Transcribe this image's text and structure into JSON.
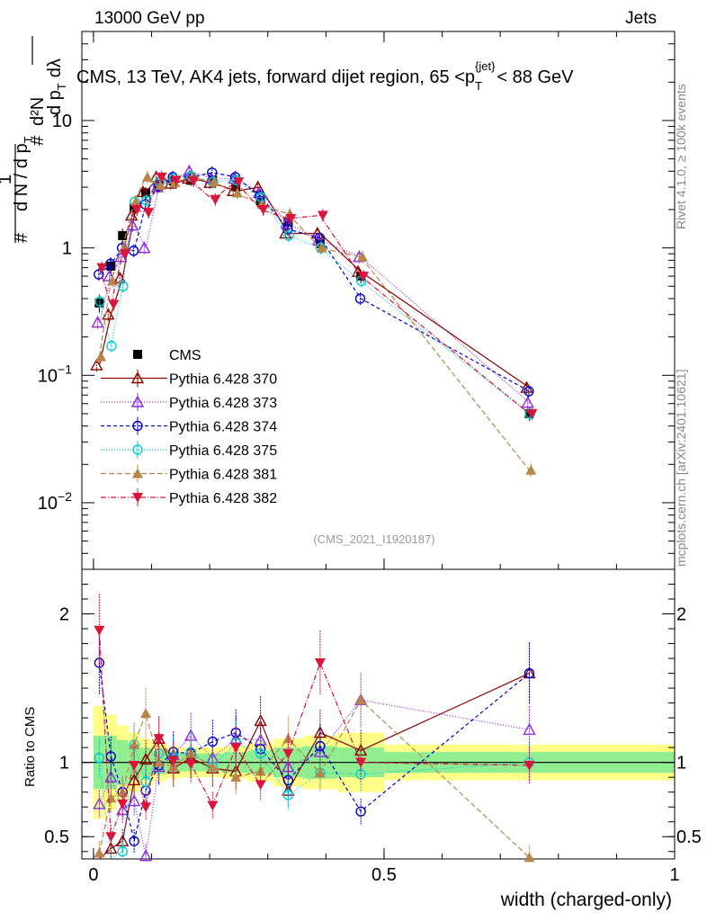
{
  "header": {
    "left_title": "13000 GeV pp",
    "right_title": "Jets"
  },
  "side_labels": {
    "rivet": "Rivet 4.1.0, ≥ 100k events",
    "mcplots": "mcplots.cern.ch [arXiv:2401.10621]"
  },
  "chart_data": {
    "type": "line",
    "title": "CMS, 13 TeV, AK4 jets, forward dijet region, 65 <p_T^{jet}< 88 GeV",
    "title_parts": {
      "main": "CMS, 13 TeV, AK4 jets, forward dijet region, 65 <p",
      "sub": "T",
      "sup": "{jet}",
      "tail": "< 88 GeV"
    },
    "watermark": "(CMS_2021_I1920187)",
    "xlabel": "width (charged-only)",
    "ylabel": "1/dN/dp_T d^2N/dp_T dλ",
    "ylabel_parts": {
      "one": "1",
      "sharp": "#",
      "den": "d N / d p",
      "subT": "T",
      "d2N": "d²N",
      "den2": "d p",
      "dlam": "dλ"
    },
    "ratio_ylabel": "Ratio to CMS",
    "xlim": [
      -0.02,
      1.0
    ],
    "ylim_main": [
      0.003,
      50
    ],
    "ylim_ratio": [
      0.35,
      2.3
    ],
    "xticks": [
      {
        "v": 0,
        "label": "0"
      },
      {
        "v": 0.5,
        "label": "0.5"
      },
      {
        "v": 1,
        "label": "1"
      }
    ],
    "main_yticks": [
      {
        "v": 0.01,
        "base": "10",
        "exp": "−2"
      },
      {
        "v": 0.1,
        "base": "10",
        "exp": "−1"
      },
      {
        "v": 1,
        "base": "1",
        "exp": ""
      },
      {
        "v": 10,
        "base": "10",
        "exp": ""
      }
    ],
    "ratio_yticks": [
      {
        "v": 0.5,
        "label": "0.5"
      },
      {
        "v": 1,
        "label": "1"
      },
      {
        "v": 2,
        "label": "2"
      }
    ],
    "bin_edges": [
      0,
      0.02,
      0.04,
      0.06,
      0.08,
      0.1,
      0.125,
      0.15,
      0.185,
      0.225,
      0.265,
      0.31,
      0.36,
      0.42,
      0.5,
      1.0
    ],
    "ratio_band_inner": [
      0.18,
      0.18,
      0.15,
      0.12,
      0.1,
      0.08,
      0.07,
      0.06,
      0.06,
      0.07,
      0.08,
      0.1,
      0.11,
      0.1,
      0.07
    ],
    "ratio_band_outer": [
      0.38,
      0.32,
      0.25,
      0.2,
      0.16,
      0.13,
      0.11,
      0.1,
      0.1,
      0.11,
      0.13,
      0.16,
      0.18,
      0.2,
      0.12
    ],
    "x": [
      0.01,
      0.03,
      0.05,
      0.07,
      0.09,
      0.1125,
      0.1375,
      0.1675,
      0.205,
      0.245,
      0.2875,
      0.335,
      0.39,
      0.46,
      0.75
    ],
    "series": [
      {
        "name": "CMS",
        "color": "#000000",
        "marker": "square",
        "dash": "",
        "label": "CMS",
        "values": [
          0.37,
          0.72,
          1.25,
          2.05,
          2.7,
          3.1,
          3.35,
          3.4,
          3.4,
          3.0,
          2.35,
          1.6,
          1.08,
          0.6,
          0.05
        ],
        "errors": [
          0.06,
          0.12,
          0.17,
          0.25,
          0.3,
          0.33,
          0.33,
          0.33,
          0.33,
          0.3,
          0.25,
          0.17,
          0.12,
          0.07,
          0.006
        ]
      },
      {
        "name": "Pythia 6.428 370",
        "color": "#8b0000",
        "marker": "triangle-open",
        "dash": "",
        "label": "Pythia 6.428 370",
        "values": [
          0.12,
          0.3,
          0.58,
          1.8,
          2.75,
          3.6,
          3.2,
          3.5,
          3.25,
          2.8,
          3.0,
          1.3,
          1.3,
          0.65,
          0.08
        ],
        "ratio": [
          0.33,
          0.42,
          0.47,
          0.88,
          1.02,
          1.16,
          0.96,
          1.03,
          0.96,
          0.94,
          1.28,
          0.81,
          1.2,
          1.08,
          1.6
        ]
      },
      {
        "name": "Pythia 6.428 373",
        "color": "#8a2be2",
        "marker": "triangle-open",
        "dash": "1,2",
        "label": "Pythia 6.428 373",
        "values": [
          0.26,
          0.6,
          0.85,
          1.5,
          1.0,
          3.0,
          3.5,
          4.0,
          3.5,
          3.5,
          2.7,
          1.55,
          1.15,
          0.85,
          0.061
        ],
        "ratio": [
          0.72,
          0.9,
          0.68,
          0.74,
          0.37,
          0.97,
          1.05,
          1.18,
          1.03,
          1.16,
          1.15,
          0.97,
          1.07,
          1.42,
          1.22
        ]
      },
      {
        "name": "Pythia 6.428 374",
        "color": "#0000cd",
        "marker": "circle-open",
        "dash": "4,3",
        "label": "Pythia 6.428 374",
        "values": [
          0.62,
          0.75,
          1.0,
          0.95,
          2.2,
          3.05,
          3.6,
          3.6,
          3.9,
          3.6,
          2.55,
          1.4,
          1.2,
          0.4,
          0.075
        ],
        "ratio": [
          1.67,
          1.04,
          0.8,
          0.47,
          0.81,
          0.98,
          1.07,
          1.06,
          1.14,
          1.2,
          1.09,
          0.88,
          1.11,
          0.67,
          1.6
        ]
      },
      {
        "name": "Pythia 6.428 375",
        "color": "#00ced1",
        "marker": "circle-open",
        "dash": "1,2",
        "label": "Pythia 6.428 375",
        "values": [
          0.38,
          0.17,
          0.5,
          2.3,
          2.35,
          3.3,
          3.5,
          3.65,
          3.3,
          3.4,
          2.5,
          1.25,
          1.0,
          0.55,
          0.05
        ],
        "ratio": [
          1.03,
          0.24,
          0.4,
          1.12,
          0.87,
          1.06,
          1.04,
          1.07,
          0.97,
          1.13,
          1.06,
          0.78,
          0.93,
          0.92,
          1.0
        ]
      },
      {
        "name": "Pythia 6.428 381",
        "color": "#b8864b",
        "marker": "triangle-filled",
        "dash": "6,3",
        "label": "Pythia 6.428 381",
        "values": [
          0.14,
          0.55,
          1.0,
          2.3,
          3.6,
          3.1,
          3.25,
          3.6,
          3.3,
          2.7,
          2.2,
          1.85,
          1.0,
          0.85,
          0.018
        ],
        "ratio": [
          0.39,
          0.76,
          0.8,
          1.12,
          1.33,
          1.0,
          0.97,
          1.06,
          0.97,
          0.9,
          0.94,
          1.16,
          0.93,
          1.42,
          0.36
        ]
      },
      {
        "name": "Pythia 6.428 382",
        "color": "#dc143c",
        "marker": "triangle-down-filled",
        "dash": "6,2,1,2",
        "label": "Pythia 6.428 382",
        "values": [
          0.7,
          0.36,
          0.9,
          2.0,
          1.9,
          3.6,
          3.4,
          3.35,
          2.4,
          3.3,
          2.0,
          1.7,
          1.8,
          0.6,
          0.05
        ],
        "ratio": [
          1.89,
          0.5,
          0.72,
          0.98,
          0.7,
          1.16,
          1.01,
          0.99,
          0.71,
          1.1,
          0.85,
          1.06,
          1.67,
          1.0,
          0.98
        ]
      }
    ]
  }
}
